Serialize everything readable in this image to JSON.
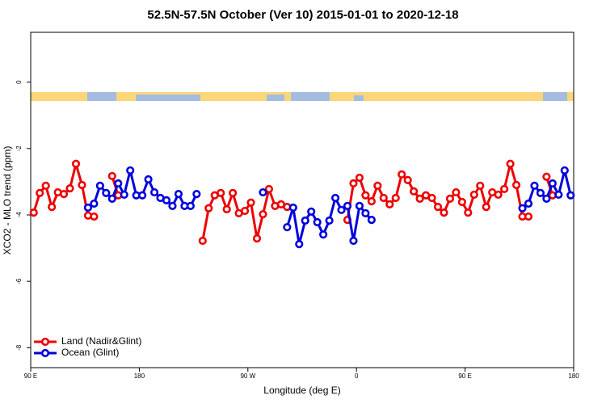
{
  "chart_data": {
    "type": "line",
    "title": "52.5N-57.5N October (Ver 10)   2015-01-01 to 2020-12-18",
    "x_label": "Longitude (deg E)",
    "y_label": "XCO2 - MLO trend (ppm)",
    "x": [
      -267.5,
      -262.5,
      -257.5,
      -252.5,
      -247.5,
      -242.5,
      -237.5,
      -232.5,
      -227.5,
      -222.5,
      -217.5,
      -212.5,
      -207.5,
      -202.5,
      -197.5,
      -192.5,
      -187.5,
      -182.5,
      -177.5,
      -172.5,
      -167.5,
      -162.5,
      -157.5,
      -152.5,
      -147.5,
      -142.5,
      -137.5,
      -132.5,
      -127.5,
      -122.5,
      -117.5,
      -112.5,
      -107.5,
      -102.5,
      -97.5,
      -92.5,
      -87.5,
      -82.5,
      -77.5,
      -72.5,
      -67.5,
      -62.5,
      -57.5,
      -52.5,
      -47.5,
      -42.5,
      -37.5,
      -32.5,
      -27.5,
      -22.5,
      -17.5,
      -12.5,
      -7.5,
      -2.5,
      2.5,
      7.5,
      12.5,
      17.5,
      22.5,
      27.5,
      32.5,
      37.5,
      42.5,
      47.5,
      52.5,
      57.5,
      62.5,
      67.5,
      72.5,
      77.5,
      82.5,
      87.5,
      92.5,
      97.5,
      102.5,
      107.5,
      112.5,
      117.5,
      122.5,
      127.5,
      132.5,
      137.5,
      142.5,
      147.5,
      152.5,
      157.5,
      162.5,
      167.5,
      172.5,
      177.5
    ],
    "series": [
      {
        "name": "Land (Nadir&Glint)",
        "color": "#ee0000",
        "values": [
          -3.93,
          -3.34,
          -3.12,
          -3.76,
          -3.32,
          -3.37,
          -3.2,
          -2.46,
          -3.1,
          -4.02,
          -4.05,
          null,
          null,
          -2.83,
          -3.41,
          null,
          null,
          null,
          null,
          null,
          null,
          null,
          null,
          null,
          null,
          null,
          null,
          null,
          -4.78,
          -3.8,
          -3.41,
          -3.34,
          -3.83,
          -3.34,
          -3.95,
          -3.88,
          -3.63,
          -4.71,
          -3.98,
          -3.22,
          -3.73,
          -3.68,
          -3.76,
          null,
          null,
          null,
          null,
          null,
          null,
          null,
          null,
          null,
          -4.15,
          -3.05,
          -2.88,
          -3.41,
          -3.59,
          -3.12,
          -3.49,
          -3.68,
          -3.49,
          -2.78,
          -2.95,
          -3.29,
          -3.51,
          -3.41,
          -3.49,
          -3.76,
          -3.93,
          -3.51,
          -3.32,
          -3.61,
          -3.93,
          -3.39,
          -3.12,
          -3.76,
          -3.32,
          -3.39,
          -3.22,
          -2.46,
          -3.1,
          -4.05,
          -4.05,
          null,
          null,
          -2.85,
          -3.41,
          null,
          null,
          null
        ]
      },
      {
        "name": "Ocean (Glint)",
        "color": "#0000dd",
        "values": [
          null,
          null,
          null,
          null,
          null,
          null,
          null,
          null,
          null,
          -3.78,
          -3.66,
          -3.12,
          -3.34,
          -3.51,
          -3.05,
          -3.39,
          -2.66,
          -3.41,
          -3.41,
          -2.93,
          -3.32,
          -3.49,
          -3.56,
          -3.73,
          -3.37,
          -3.73,
          -3.73,
          -3.37,
          null,
          null,
          null,
          null,
          null,
          null,
          null,
          null,
          null,
          null,
          -3.32,
          null,
          null,
          null,
          -4.37,
          -3.78,
          -4.88,
          -4.17,
          -3.9,
          -4.22,
          -4.59,
          -4.17,
          -3.49,
          -3.85,
          -3.73,
          -4.78,
          -3.73,
          -3.95,
          -4.15,
          null,
          null,
          null,
          null,
          null,
          null,
          null,
          null,
          null,
          null,
          null,
          null,
          null,
          null,
          null,
          null,
          null,
          null,
          null,
          null,
          null,
          null,
          null,
          null,
          -3.8,
          -3.66,
          -3.12,
          -3.34,
          -3.51,
          -3.05,
          -3.39,
          -2.66,
          -3.41
        ]
      }
    ],
    "xlim": [
      -270,
      180
    ],
    "xticks": [
      {
        "value": -270,
        "label": "90 E"
      },
      {
        "value": -180,
        "label": "180"
      },
      {
        "value": -90,
        "label": "90 W"
      },
      0,
      {
        "value": 90,
        "label": "90 E"
      },
      180
    ],
    "ylim": [
      -8.6,
      1.5
    ],
    "yticks": [
      0,
      -2,
      -4,
      -6,
      -8
    ],
    "legend": "bottom-left"
  }
}
